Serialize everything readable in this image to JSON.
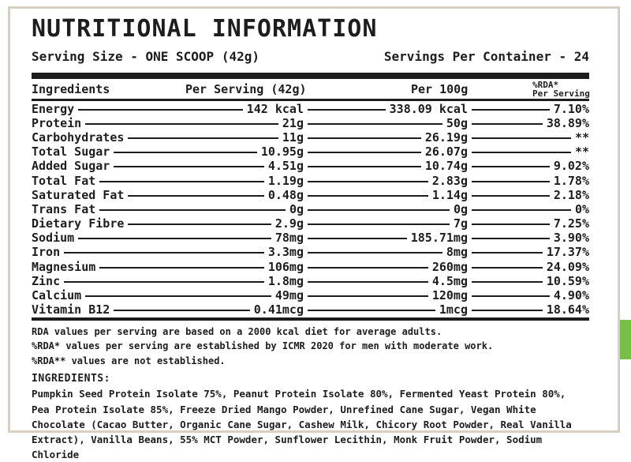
{
  "header": {
    "title": "NUTRITIONAL INFORMATION",
    "serving_size": "Serving Size - ONE SCOOP (42g)",
    "servings_per_container": "Servings Per Container - 24"
  },
  "table": {
    "columns": {
      "ingredients": "Ingredients",
      "per_serving": "Per Serving (42g)",
      "per_100g": "Per 100g",
      "rda_line1": "%RDA*",
      "rda_line2": "Per Serving"
    },
    "rows": [
      {
        "name": "Energy",
        "per_serving": "142 kcal",
        "per_100g": "338.09 kcal",
        "rda": "7.10%"
      },
      {
        "name": "Protein",
        "per_serving": "21g",
        "per_100g": "50g",
        "rda": "38.89%"
      },
      {
        "name": "Carbohydrates",
        "per_serving": "11g",
        "per_100g": "26.19g",
        "rda": "**"
      },
      {
        "name": "Total Sugar",
        "per_serving": "10.95g",
        "per_100g": "26.07g",
        "rda": "**"
      },
      {
        "name": "Added Sugar",
        "per_serving": "4.51g",
        "per_100g": "10.74g",
        "rda": "9.02%"
      },
      {
        "name": "Total Fat",
        "per_serving": "1.19g",
        "per_100g": "2.83g",
        "rda": "1.78%"
      },
      {
        "name": "Saturated Fat",
        "per_serving": "0.48g",
        "per_100g": "1.14g",
        "rda": "2.18%"
      },
      {
        "name": "Trans Fat",
        "per_serving": "0g",
        "per_100g": "0g",
        "rda": "0%"
      },
      {
        "name": "Dietary Fibre",
        "per_serving": "2.9g",
        "per_100g": "7g",
        "rda": "7.25%"
      },
      {
        "name": "Sodium",
        "per_serving": "78mg",
        "per_100g": "185.71mg",
        "rda": "3.90%"
      },
      {
        "name": "Iron",
        "per_serving": "3.3mg",
        "per_100g": "8mg",
        "rda": "17.37%"
      },
      {
        "name": "Magnesium",
        "per_serving": "106mg",
        "per_100g": "260mg",
        "rda": "24.09%"
      },
      {
        "name": "Zinc",
        "per_serving": "1.8mg",
        "per_100g": "4.5mg",
        "rda": "10.59%"
      },
      {
        "name": "Calcium",
        "per_serving": "49mg",
        "per_100g": "120mg",
        "rda": "4.90%"
      },
      {
        "name": "Vitamin B12",
        "per_serving": "0.41mcg",
        "per_100g": "1mcg",
        "rda": "18.64%"
      }
    ]
  },
  "footnotes": [
    "RDA values per serving are based on a 2000 kcal diet for average adults.",
    "%RDA* values per serving are established by ICMR 2020 for men with moderate work.",
    "%RDA** values are not established."
  ],
  "ingredients": {
    "heading": "INGREDIENTS:",
    "text": "Pumpkin Seed Protein Isolate 75%, Peanut Protein Isolate 80%, Fermented Yeast Protein 80%, Pea Protein Isolate 85%, Freeze Dried Mango Powder, Unrefined Cane Sugar, Vegan White Chocolate (Cacao Butter, Organic Cane Sugar, Cashew Milk, Chicory Root Powder, Real Vanilla Extract), Vanilla Beans, 55% MCT Powder, Sunflower Lecithin, Monk Fruit Powder, Sodium Chloride"
  },
  "colors": {
    "accent_green": "#76C045",
    "border_tan": "#D6CFC2",
    "text": "#1D1D1D"
  }
}
